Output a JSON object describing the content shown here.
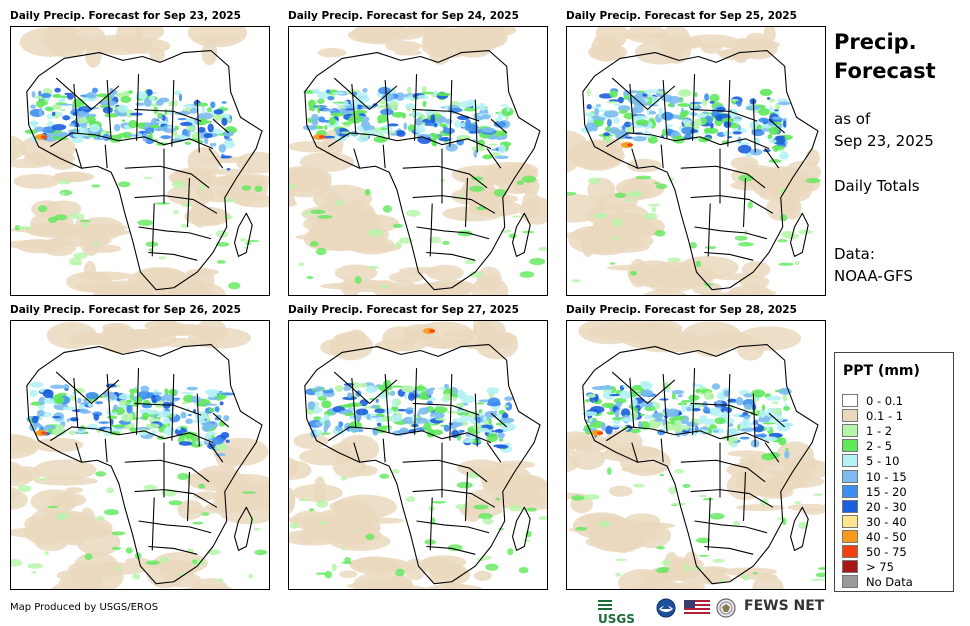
{
  "panels": [
    {
      "title": "Daily Precip. Forecast for Sep 23, 2025"
    },
    {
      "title": "Daily Precip. Forecast for Sep 24, 2025"
    },
    {
      "title": "Daily Precip. Forecast for Sep 25, 2025"
    },
    {
      "title": "Daily Precip. Forecast for Sep 26, 2025"
    },
    {
      "title": "Daily Precip. Forecast for Sep 27, 2025"
    },
    {
      "title": "Daily Precip. Forecast for Sep 28, 2025"
    }
  ],
  "sidebar": {
    "title_line1": "Precip.",
    "title_line2": "Forecast",
    "asof_line1": "as of",
    "asof_line2": "Sep 23, 2025",
    "totals": "Daily Totals",
    "data_line1": "Data:",
    "data_line2": "NOAA-GFS"
  },
  "legend": {
    "title": "PPT (mm)",
    "items": [
      {
        "label": "0 - 0.1",
        "color": "#ffffff"
      },
      {
        "label": "0.1 - 1",
        "color": "#ead8be"
      },
      {
        "label": "1 - 2",
        "color": "#b4f5a8"
      },
      {
        "label": "2 - 5",
        "color": "#5fe85a"
      },
      {
        "label": "5 - 10",
        "color": "#b5f2f5"
      },
      {
        "label": "10 - 15",
        "color": "#7bbbf0"
      },
      {
        "label": "15 - 20",
        "color": "#3d8ef0"
      },
      {
        "label": "20 - 30",
        "color": "#1a5ede"
      },
      {
        "label": "30 - 40",
        "color": "#fde38a"
      },
      {
        "label": "40 - 50",
        "color": "#f99a1c"
      },
      {
        "label": "50 - 75",
        "color": "#f3400e"
      },
      {
        "label": "> 75",
        "color": "#a91616"
      },
      {
        "label": "No Data",
        "color": "#999999"
      }
    ]
  },
  "footer": {
    "credit": "Map Produced by USGS/EROS",
    "usgs_logo_text": "USGS",
    "fewsnet_text": "FEWS NET",
    "logo_icons": [
      "usgs-logo-icon",
      "noaa-logo-icon",
      "us-flag-icon",
      "state-dept-seal-icon"
    ]
  }
}
